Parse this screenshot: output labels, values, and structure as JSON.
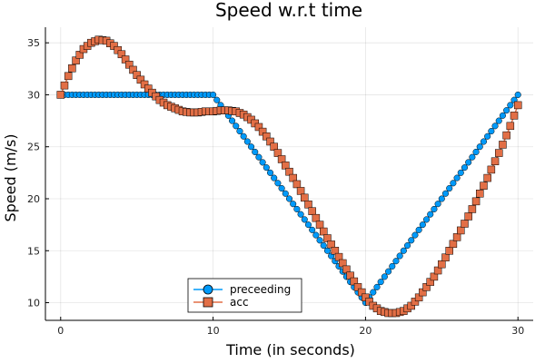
{
  "chart_data": {
    "type": "line",
    "title": "Speed w.r.t time",
    "xlabel": "Time (in seconds)",
    "ylabel": "Speed (m/s)",
    "xlim": [
      -1,
      31
    ],
    "ylim": [
      8.3,
      36.5
    ],
    "xticks": [
      0,
      10,
      20,
      30
    ],
    "yticks": [
      10,
      15,
      20,
      25,
      30,
      35
    ],
    "grid": true,
    "legend_position": "bottom-center",
    "series": [
      {
        "name": "preceeding",
        "color": "#009AFA",
        "marker": "circle",
        "x": [
          0,
          10,
          20,
          30
        ],
        "y": [
          30,
          30,
          10,
          30
        ]
      },
      {
        "name": "acc",
        "color": "#E26F46",
        "marker": "square",
        "x": [
          0,
          0.5,
          1,
          1.5,
          2,
          2.5,
          3,
          3.5,
          4,
          4.5,
          5,
          5.5,
          6,
          6.5,
          7,
          7.5,
          8,
          8.5,
          9,
          9.5,
          10,
          10.5,
          11,
          11.5,
          12,
          12.5,
          13,
          13.5,
          14,
          14.5,
          15,
          15.5,
          16,
          16.5,
          17,
          17.5,
          18,
          18.5,
          19,
          19.5,
          20,
          20.5,
          21,
          21.5,
          22,
          22.5,
          23,
          23.5,
          24,
          24.5,
          25,
          25.5,
          26,
          26.5,
          27,
          27.5,
          28,
          28.5,
          29,
          29.5,
          30
        ],
        "y": [
          30,
          31.8,
          33.3,
          34.4,
          35,
          35.3,
          35.2,
          34.7,
          33.9,
          32.9,
          31.9,
          31,
          30.2,
          29.5,
          29,
          28.7,
          28.4,
          28.3,
          28.3,
          28.4,
          28.4,
          28.5,
          28.5,
          28.4,
          28.1,
          27.6,
          26.9,
          26,
          25,
          23.8,
          22.6,
          21.4,
          20.1,
          18.8,
          17.5,
          16.2,
          15,
          13.8,
          12.6,
          11.5,
          10.5,
          9.7,
          9.2,
          9,
          9,
          9.2,
          9.7,
          10.5,
          11.5,
          12.5,
          13.7,
          15,
          16.3,
          17.6,
          19,
          20.5,
          22,
          23.6,
          25.2,
          27,
          29
        ]
      }
    ]
  }
}
